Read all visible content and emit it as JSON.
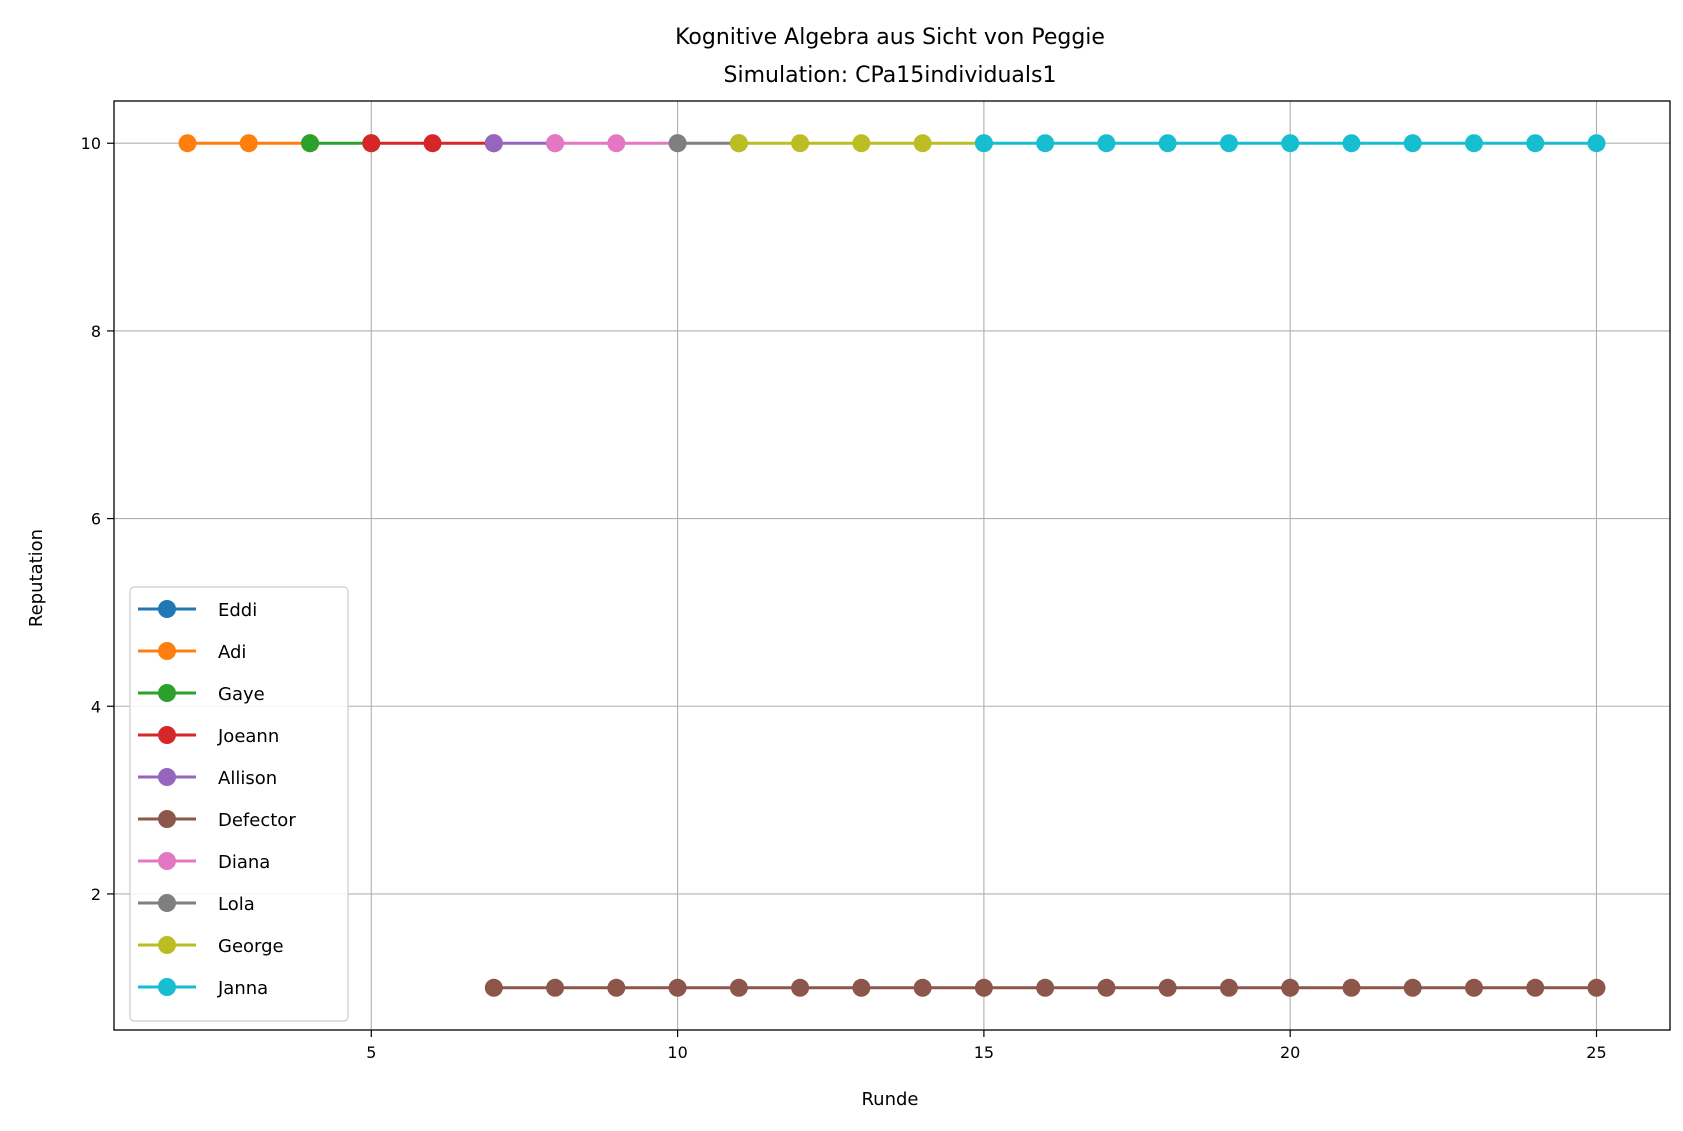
{
  "chart_data": {
    "type": "line",
    "title": "Kognitive Algebra aus Sicht von Peggie",
    "subtitle": "Simulation: CPa15individuals1",
    "xlabel": "Runde",
    "ylabel": "Reputation",
    "xlim": [
      0.8,
      26.2
    ],
    "ylim": [
      0.55,
      10.45
    ],
    "xticks": [
      5,
      10,
      15,
      20,
      25
    ],
    "yticks": [
      2,
      4,
      6,
      8,
      10
    ],
    "grid": true,
    "legend_position": "lower-left",
    "series": [
      {
        "name": "Eddi",
        "color": "#1f77b4",
        "x": [],
        "y": []
      },
      {
        "name": "Adi",
        "color": "#ff7f0e",
        "x": [
          2,
          3,
          4
        ],
        "y": [
          10,
          10,
          10
        ]
      },
      {
        "name": "Gaye",
        "color": "#2ca02c",
        "x": [
          4,
          5
        ],
        "y": [
          10,
          10
        ]
      },
      {
        "name": "Joeann",
        "color": "#d62728",
        "x": [
          5,
          6,
          7
        ],
        "y": [
          10,
          10,
          10
        ]
      },
      {
        "name": "Allison",
        "color": "#9467bd",
        "x": [
          7,
          8
        ],
        "y": [
          10,
          10
        ]
      },
      {
        "name": "Defector",
        "color": "#8c564b",
        "x": [
          7,
          8,
          9,
          10,
          11,
          12,
          13,
          14,
          15,
          16,
          17,
          18,
          19,
          20,
          21,
          22,
          23,
          24,
          25
        ],
        "y": [
          1,
          1,
          1,
          1,
          1,
          1,
          1,
          1,
          1,
          1,
          1,
          1,
          1,
          1,
          1,
          1,
          1,
          1,
          1
        ]
      },
      {
        "name": "Diana",
        "color": "#e377c2",
        "x": [
          8,
          9,
          10
        ],
        "y": [
          10,
          10,
          10
        ]
      },
      {
        "name": "Lola",
        "color": "#7f7f7f",
        "x": [
          10,
          11
        ],
        "y": [
          10,
          10
        ]
      },
      {
        "name": "George",
        "color": "#bcbd22",
        "x": [
          11,
          12,
          13,
          14,
          15
        ],
        "y": [
          10,
          10,
          10,
          10,
          10
        ]
      },
      {
        "name": "Janna",
        "color": "#17becf",
        "x": [
          15,
          16,
          17,
          18,
          19,
          20,
          21,
          22,
          23,
          24,
          25
        ],
        "y": [
          10,
          10,
          10,
          10,
          10,
          10,
          10,
          10,
          10,
          10,
          10
        ]
      }
    ]
  }
}
